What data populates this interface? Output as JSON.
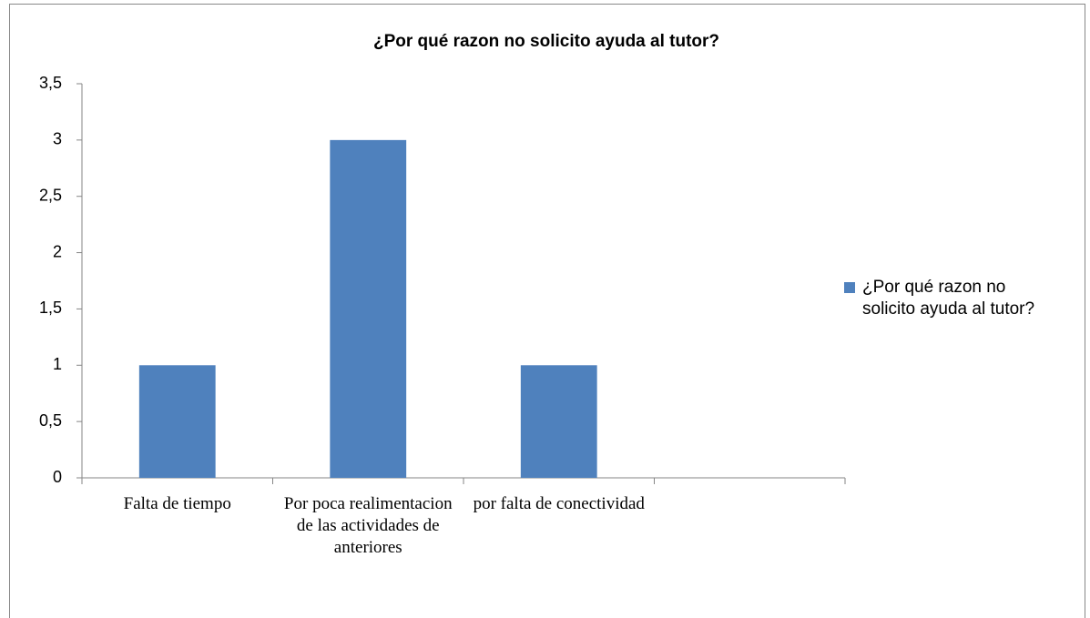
{
  "chart_data": {
    "type": "bar",
    "title": "¿Por qué razon no solicito ayuda al tutor?",
    "categories": [
      "Falta de tiempo",
      "Por poca realimentacion de las actividades de anteriores",
      "por falta de conectividad",
      null
    ],
    "series": [
      {
        "name": "¿Por qué razon no solicito ayuda al tutor?",
        "color": "#4f81bd",
        "values": [
          1,
          3,
          1,
          null
        ]
      }
    ],
    "ylim": [
      0,
      3.5
    ],
    "yticks": [
      0,
      {
        "value": 0.5,
        "label": "0,5"
      },
      1,
      {
        "value": 1.5,
        "label": "1,5"
      },
      2,
      {
        "value": 2.5,
        "label": "2,5"
      },
      3,
      {
        "value": 3.5,
        "label": "3,5"
      }
    ],
    "legend": "right"
  }
}
